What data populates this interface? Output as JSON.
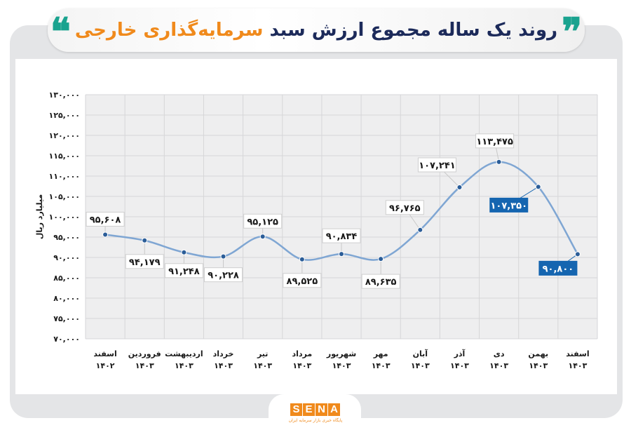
{
  "header": {
    "title_main": "روند یک ساله مجموع ارزش سبد",
    "title_highlight": "سرمایه‌گذاری خارجی",
    "quote_open": "❞",
    "quote_close": "❝"
  },
  "logo": {
    "letters": [
      "S",
      "E",
      "N",
      "A"
    ],
    "subtitle": "پایگاه خبری بازار سرمایه ایران"
  },
  "colors": {
    "line": "#7fa6d3",
    "point": "#2b5d98",
    "highlight_box": "#1565b0",
    "title": "#1c2a5a",
    "accent": "#f08a1c",
    "quote": "#1aa38f"
  },
  "chart_data": {
    "type": "line",
    "title": "روند یک ساله مجموع ارزش سبد سرمایه‌گذاری خارجی",
    "ylabel": "میلیارد ریال",
    "xlabel": "",
    "ylim": [
      70000,
      130000
    ],
    "ytick_step": 5000,
    "yticks": [
      "۷۰,۰۰۰",
      "۷۵,۰۰۰",
      "۸۰,۰۰۰",
      "۸۵,۰۰۰",
      "۹۰,۰۰۰",
      "۹۵,۰۰۰",
      "۱۰۰,۰۰۰",
      "۱۰۵,۰۰۰",
      "۱۱۰,۰۰۰",
      "۱۱۵,۰۰۰",
      "۱۲۰,۰۰۰",
      "۱۲۵,۰۰۰",
      "۱۳۰,۰۰۰"
    ],
    "grid": true,
    "smooth": true,
    "categories": [
      {
        "month": "اسفند",
        "year": "۱۴۰۲"
      },
      {
        "month": "فروردین",
        "year": "۱۴۰۳"
      },
      {
        "month": "اردیبهشت",
        "year": "۱۴۰۳"
      },
      {
        "month": "خرداد",
        "year": "۱۴۰۳"
      },
      {
        "month": "تیر",
        "year": "۱۴۰۳"
      },
      {
        "month": "مرداد",
        "year": "۱۴۰۳"
      },
      {
        "month": "شهریور",
        "year": "۱۴۰۳"
      },
      {
        "month": "مهر",
        "year": "۱۴۰۳"
      },
      {
        "month": "آبان",
        "year": "۱۴۰۳"
      },
      {
        "month": "آذر",
        "year": "۱۴۰۳"
      },
      {
        "month": "دی",
        "year": "۱۴۰۳"
      },
      {
        "month": "بهمن",
        "year": "۱۴۰۳"
      },
      {
        "month": "اسفند",
        "year": "۱۴۰۳"
      }
    ],
    "values": [
      95608,
      94179,
      91248,
      90228,
      95125,
      89525,
      90834,
      89635,
      96765,
      107241,
      113475,
      107350,
      90800
    ],
    "labels": [
      "۹۵,۶۰۸",
      "۹۴,۱۷۹",
      "۹۱,۲۴۸",
      "۹۰,۲۲۸",
      "۹۵,۱۲۵",
      "۸۹,۵۲۵",
      "۹۰,۸۳۴",
      "۸۹,۶۳۵",
      "۹۶,۷۶۵",
      "۱۰۷,۲۴۱",
      "۱۱۳,۴۷۵",
      "۱۰۷,۳۵۰",
      "۹۰,۸۰۰"
    ],
    "highlighted": [
      11,
      12
    ]
  }
}
